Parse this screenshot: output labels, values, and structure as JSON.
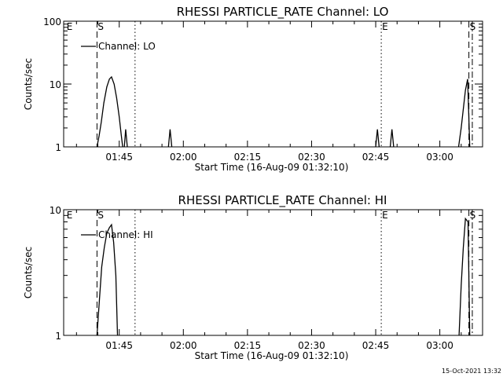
{
  "footer_timestamp": "15-Oct-2021 13:32",
  "chart_data": [
    {
      "type": "line",
      "title": "RHESSI PARTICLE_RATE Channel: LO",
      "xlabel": "Start Time (16-Aug-09 01:32:10)",
      "ylabel": "Counts/sec",
      "y_scale": "log",
      "ylim": [
        1,
        100
      ],
      "yticks": [
        {
          "value": 1,
          "label": "1"
        },
        {
          "value": 10,
          "label": "10"
        },
        {
          "value": 100,
          "label": "100"
        }
      ],
      "x_range_minutes_from_start": [
        0,
        98
      ],
      "xticks": [
        {
          "t": 13,
          "label": "01:45"
        },
        {
          "t": 28,
          "label": "02:00"
        },
        {
          "t": 43,
          "label": "02:15"
        },
        {
          "t": 58,
          "label": "02:30"
        },
        {
          "t": 73,
          "label": "02:45"
        },
        {
          "t": 88,
          "label": "03:00"
        }
      ],
      "legend": "top-left",
      "series": [
        {
          "name": "Channel: LO",
          "points": [
            [
              7.8,
              1
            ],
            [
              8.3,
              1.5
            ],
            [
              8.8,
              2.5
            ],
            [
              9.4,
              5
            ],
            [
              10.1,
              9
            ],
            [
              10.7,
              12
            ],
            [
              11.2,
              13
            ],
            [
              11.8,
              10
            ],
            [
              12.4,
              6
            ],
            [
              13.0,
              3
            ],
            [
              13.5,
              1.5
            ],
            [
              13.8,
              1
            ]
          ]
        },
        {
          "name": "",
          "points": [
            [
              14.2,
              1
            ],
            [
              14.5,
              1.9
            ],
            [
              14.9,
              1
            ]
          ]
        },
        {
          "name": "",
          "points": [
            [
              24.5,
              1
            ],
            [
              24.9,
              1.9
            ],
            [
              25.3,
              1
            ]
          ]
        },
        {
          "name": "",
          "points": [
            [
              73.0,
              1
            ],
            [
              73.4,
              1.9
            ],
            [
              73.8,
              1
            ]
          ]
        },
        {
          "name": "",
          "points": [
            [
              76.4,
              1
            ],
            [
              76.8,
              1.9
            ],
            [
              77.2,
              1
            ]
          ]
        },
        {
          "name": "",
          "points": [
            [
              92.4,
              1
            ],
            [
              93.0,
              2
            ],
            [
              93.5,
              4
            ],
            [
              94.0,
              8
            ],
            [
              94.5,
              12
            ],
            [
              95.0,
              1
            ]
          ]
        }
      ],
      "markers": [
        {
          "t": 0.5,
          "label": "E",
          "style": "none"
        },
        {
          "t": 7.8,
          "label": "S",
          "style": "dashed"
        },
        {
          "t": 16.7,
          "label": "",
          "style": "dotted"
        },
        {
          "t": 74.3,
          "label": "E",
          "style": "dotted"
        },
        {
          "t": 94.8,
          "label": "S",
          "style": "dashed"
        },
        {
          "t": 95.6,
          "label": "",
          "style": "dashdot"
        }
      ]
    },
    {
      "type": "line",
      "title": "RHESSI PARTICLE_RATE Channel: HI",
      "xlabel": "Start Time (16-Aug-09 01:32:10)",
      "ylabel": "Counts/sec",
      "y_scale": "log",
      "ylim": [
        1,
        10
      ],
      "yticks": [
        {
          "value": 1,
          "label": "1"
        },
        {
          "value": 10,
          "label": "10"
        }
      ],
      "x_range_minutes_from_start": [
        0,
        98
      ],
      "xticks": [
        {
          "t": 13,
          "label": "01:45"
        },
        {
          "t": 28,
          "label": "02:00"
        },
        {
          "t": 43,
          "label": "02:15"
        },
        {
          "t": 58,
          "label": "02:30"
        },
        {
          "t": 73,
          "label": "02:45"
        },
        {
          "t": 88,
          "label": "03:00"
        }
      ],
      "legend": "top-left",
      "series": [
        {
          "name": "Channel: HI",
          "points": [
            [
              7.8,
              1
            ],
            [
              8.4,
              2
            ],
            [
              8.9,
              3.5
            ],
            [
              9.5,
              5
            ],
            [
              10.1,
              6.5
            ],
            [
              10.7,
              7.2
            ],
            [
              11.2,
              7.6
            ],
            [
              11.7,
              5.5
            ],
            [
              12.2,
              3
            ],
            [
              12.6,
              1
            ]
          ]
        },
        {
          "name": "",
          "points": [
            [
              92.5,
              1
            ],
            [
              93.0,
              2.5
            ],
            [
              93.5,
              5
            ],
            [
              94.0,
              8.5
            ],
            [
              94.6,
              8
            ],
            [
              95.0,
              1
            ]
          ]
        }
      ],
      "markers": [
        {
          "t": 0.5,
          "label": "E",
          "style": "none"
        },
        {
          "t": 7.8,
          "label": "S",
          "style": "dashed"
        },
        {
          "t": 16.7,
          "label": "",
          "style": "dotted"
        },
        {
          "t": 74.3,
          "label": "E",
          "style": "dotted"
        },
        {
          "t": 94.8,
          "label": "S",
          "style": "dashed"
        },
        {
          "t": 95.6,
          "label": "",
          "style": "dashdot"
        }
      ]
    }
  ]
}
